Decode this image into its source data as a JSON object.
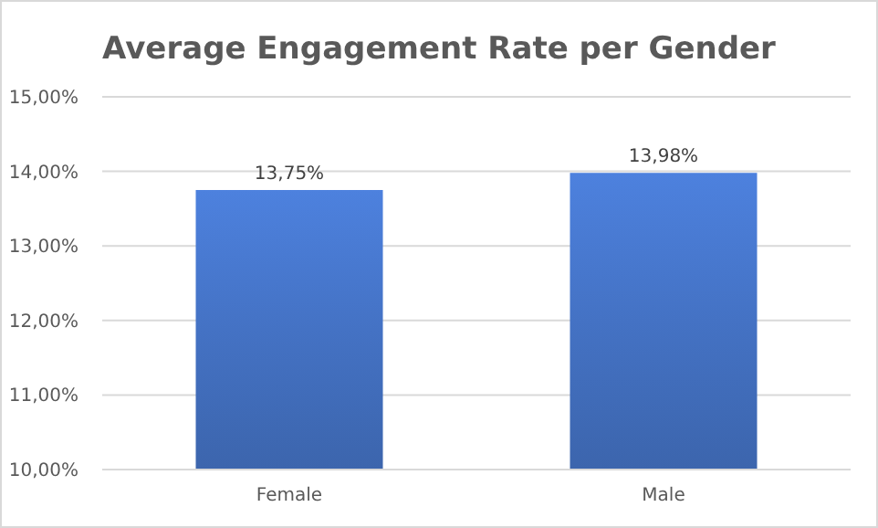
{
  "chart_data": {
    "type": "bar",
    "title": "Average Engagement Rate per Gender",
    "categories": [
      "Female",
      "Male"
    ],
    "values": [
      13.75,
      13.98
    ],
    "value_labels": [
      "13,75%",
      "13,98%"
    ],
    "color": "#4472c4",
    "ylim": [
      10,
      15
    ],
    "yticks": [
      {
        "value": 10,
        "label": "10,00%"
      },
      {
        "value": 11,
        "label": "11,00%"
      },
      {
        "value": 12,
        "label": "12,00%"
      },
      {
        "value": 13,
        "label": "13,00%"
      },
      {
        "value": 14,
        "label": "14,00%"
      },
      {
        "value": 15,
        "label": "15,00%"
      }
    ],
    "grid": "y"
  }
}
